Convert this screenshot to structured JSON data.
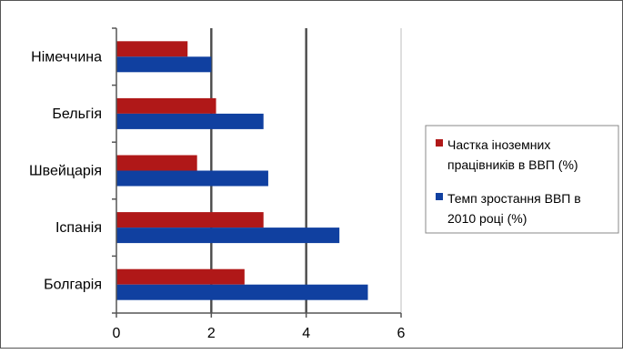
{
  "chart_data": {
    "type": "bar",
    "orientation": "horizontal",
    "title": "",
    "xlabel": "",
    "ylabel": "",
    "categories": [
      "Німеччина",
      "Бельгія",
      "Швейцарія",
      "Іспанія",
      "Болгарія"
    ],
    "series": [
      {
        "name": "Частка іноземних працівників в ВВП (%)",
        "color": "#b01818",
        "values": [
          1.5,
          2.1,
          1.7,
          3.1,
          2.7
        ]
      },
      {
        "name": "Темп зростання ВВП в 2010 році (%)",
        "color": "#1040a0",
        "values": [
          2.0,
          3.1,
          3.2,
          4.7,
          5.3
        ]
      }
    ],
    "xlim": [
      0,
      6
    ],
    "xticks": [
      "0",
      "2",
      "4",
      "6"
    ],
    "grid": true,
    "legend_position": "right",
    "legend_lines": [
      [
        "Частка іноземних",
        "працівників в ВВП (%)"
      ],
      [
        "Темп зростання ВВП в",
        "2010 році (%)"
      ]
    ]
  }
}
